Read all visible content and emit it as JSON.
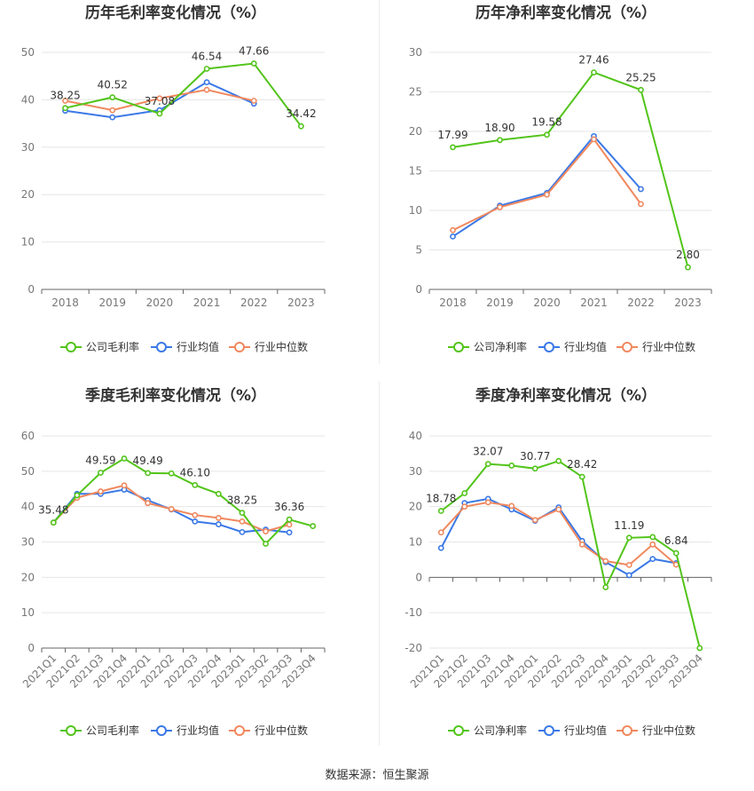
{
  "colors": {
    "company": "#52c41a",
    "avg": "#3a78e6",
    "median": "#f0885e"
  },
  "source": "数据来源：恒生聚源",
  "chart_data": [
    {
      "type": "line",
      "title": "历年毛利率变化情况（%）",
      "categories": [
        "2018",
        "2019",
        "2020",
        "2021",
        "2022",
        "2023"
      ],
      "ylim": [
        0,
        50
      ],
      "yticks": [
        0,
        10,
        20,
        30,
        40,
        50
      ],
      "series": [
        {
          "name": "公司毛利率",
          "values": [
            38.25,
            40.52,
            37.08,
            46.54,
            47.66,
            34.42
          ]
        },
        {
          "name": "行业均值",
          "values": [
            37.7,
            36.3,
            37.8,
            43.7,
            39.2,
            null
          ]
        },
        {
          "name": "行业中位数",
          "values": [
            39.8,
            37.8,
            40.3,
            42.1,
            39.8,
            null
          ]
        }
      ],
      "labels": [
        "38.25",
        "40.52",
        "37.08",
        "46.54",
        "47.66",
        "34.42"
      ]
    },
    {
      "type": "line",
      "title": "历年净利率变化情况（%）",
      "categories": [
        "2018",
        "2019",
        "2020",
        "2021",
        "2022",
        "2023"
      ],
      "ylim": [
        0,
        30
      ],
      "yticks": [
        0,
        5,
        10,
        15,
        20,
        25,
        30
      ],
      "series": [
        {
          "name": "公司净利率",
          "values": [
            17.99,
            18.9,
            19.58,
            27.46,
            25.25,
            2.8
          ]
        },
        {
          "name": "行业均值",
          "values": [
            6.7,
            10.6,
            12.2,
            19.4,
            12.7,
            null
          ]
        },
        {
          "name": "行业中位数",
          "values": [
            7.5,
            10.4,
            12.0,
            19.0,
            10.8,
            null
          ]
        }
      ],
      "labels": [
        "17.99",
        "18.90",
        "19.58",
        "27.46",
        "25.25",
        "2.80"
      ]
    },
    {
      "type": "line",
      "title": "季度毛利率变化情况（%）",
      "categories": [
        "2021Q1",
        "2021Q2",
        "2021Q3",
        "2021Q4",
        "2022Q1",
        "2022Q2",
        "2022Q3",
        "2022Q4",
        "2023Q1",
        "2023Q2",
        "2023Q3",
        "2023Q4"
      ],
      "ylim": [
        0,
        60
      ],
      "yticks": [
        0,
        10,
        20,
        30,
        40,
        50,
        60
      ],
      "series": [
        {
          "name": "公司毛利率",
          "values": [
            35.48,
            43.2,
            49.59,
            53.6,
            49.49,
            49.4,
            46.1,
            43.6,
            38.25,
            29.5,
            36.36,
            34.5
          ]
        },
        {
          "name": "行业均值",
          "values": [
            35.5,
            43.6,
            43.6,
            44.8,
            41.8,
            39.2,
            35.8,
            35.0,
            32.8,
            33.5,
            32.7,
            null
          ]
        },
        {
          "name": "行业中位数",
          "values": [
            35.5,
            42.5,
            44.3,
            46.0,
            41.0,
            39.3,
            37.6,
            36.8,
            35.8,
            33.0,
            34.9,
            null
          ]
        }
      ],
      "labels": [
        "35.48",
        "",
        "49.59",
        "",
        "49.49",
        "",
        "46.10",
        "",
        "38.25",
        "",
        "36.36",
        ""
      ]
    },
    {
      "type": "line",
      "title": "季度净利率变化情况（%）",
      "categories": [
        "2021Q1",
        "2021Q2",
        "2021Q3",
        "2021Q4",
        "2022Q1",
        "2022Q2",
        "2022Q3",
        "2022Q4",
        "2023Q1",
        "2023Q2",
        "2023Q3",
        "2023Q4"
      ],
      "ylim": [
        -20,
        40
      ],
      "yticks": [
        -20,
        -10,
        0,
        10,
        20,
        30,
        40
      ],
      "series": [
        {
          "name": "公司净利率",
          "values": [
            18.78,
            23.8,
            32.07,
            31.6,
            30.77,
            32.9,
            28.42,
            -2.8,
            11.19,
            11.4,
            6.84,
            -20.0
          ]
        },
        {
          "name": "行业均值",
          "values": [
            8.3,
            21.0,
            22.2,
            19.2,
            16.0,
            19.8,
            10.3,
            4.3,
            0.6,
            5.2,
            4.0,
            null
          ]
        },
        {
          "name": "行业中位数",
          "values": [
            12.7,
            20.0,
            21.2,
            20.2,
            16.2,
            19.2,
            9.3,
            4.6,
            3.5,
            9.3,
            3.6,
            null
          ]
        }
      ],
      "labels": [
        "18.78",
        "",
        "32.07",
        "",
        "30.77",
        "",
        "28.42",
        "",
        "11.19",
        "",
        "6.84",
        ""
      ]
    }
  ]
}
